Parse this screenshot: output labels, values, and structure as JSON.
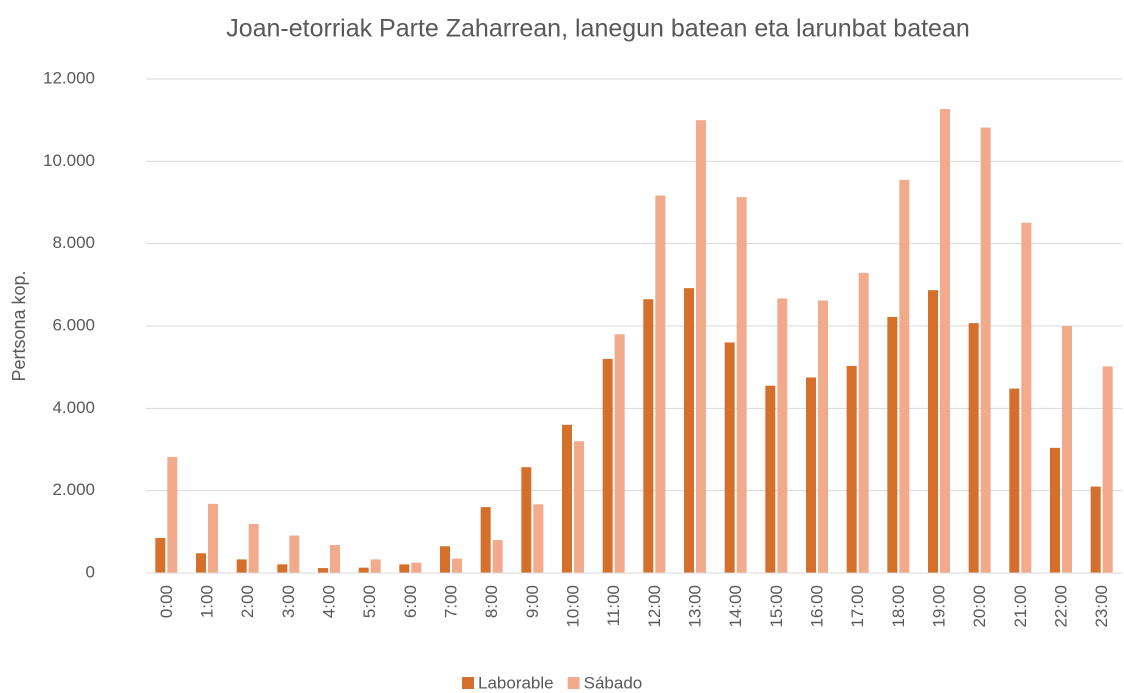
{
  "chart_data": {
    "type": "bar",
    "title": "Joan-etorriak Parte Zaharrean, lanegun batean eta larunbat batean",
    "y_label": "Pertsona kop.",
    "categories": [
      "0:00",
      "1:00",
      "2:00",
      "3:00",
      "4:00",
      "5:00",
      "6:00",
      "7:00",
      "8:00",
      "9:00",
      "10:00",
      "11:00",
      "12:00",
      "13:00",
      "14:00",
      "15:00",
      "16:00",
      "17:00",
      "18:00",
      "19:00",
      "20:00",
      "21:00",
      "22:00",
      "23:00"
    ],
    "series": [
      {
        "name": "Laborable",
        "color": "#d4702b",
        "values": [
          850,
          480,
          330,
          210,
          120,
          130,
          210,
          650,
          1600,
          2570,
          3600,
          5200,
          6650,
          6920,
          5600,
          4550,
          4750,
          5030,
          6220,
          6870,
          6070,
          4480,
          3040,
          2100
        ]
      },
      {
        "name": "Sábado",
        "color": "#f2aa8c",
        "values": [
          2820,
          1680,
          1190,
          910,
          680,
          330,
          250,
          350,
          800,
          1670,
          3200,
          5800,
          9170,
          11000,
          9130,
          6670,
          6620,
          7290,
          9550,
          11270,
          10820,
          8510,
          6000,
          5020
        ]
      }
    ],
    "ylim": [
      0,
      12000
    ],
    "yticks": [
      0,
      {
        "value": 2000,
        "label": "2.000"
      },
      {
        "value": 4000,
        "label": "4.000"
      },
      {
        "value": 6000,
        "label": "6.000"
      },
      {
        "value": 8000,
        "label": "8.000"
      },
      {
        "value": 10000,
        "label": "10.000"
      },
      {
        "value": 12000,
        "label": "12.000"
      }
    ],
    "grid": true,
    "legend": "bottom"
  }
}
